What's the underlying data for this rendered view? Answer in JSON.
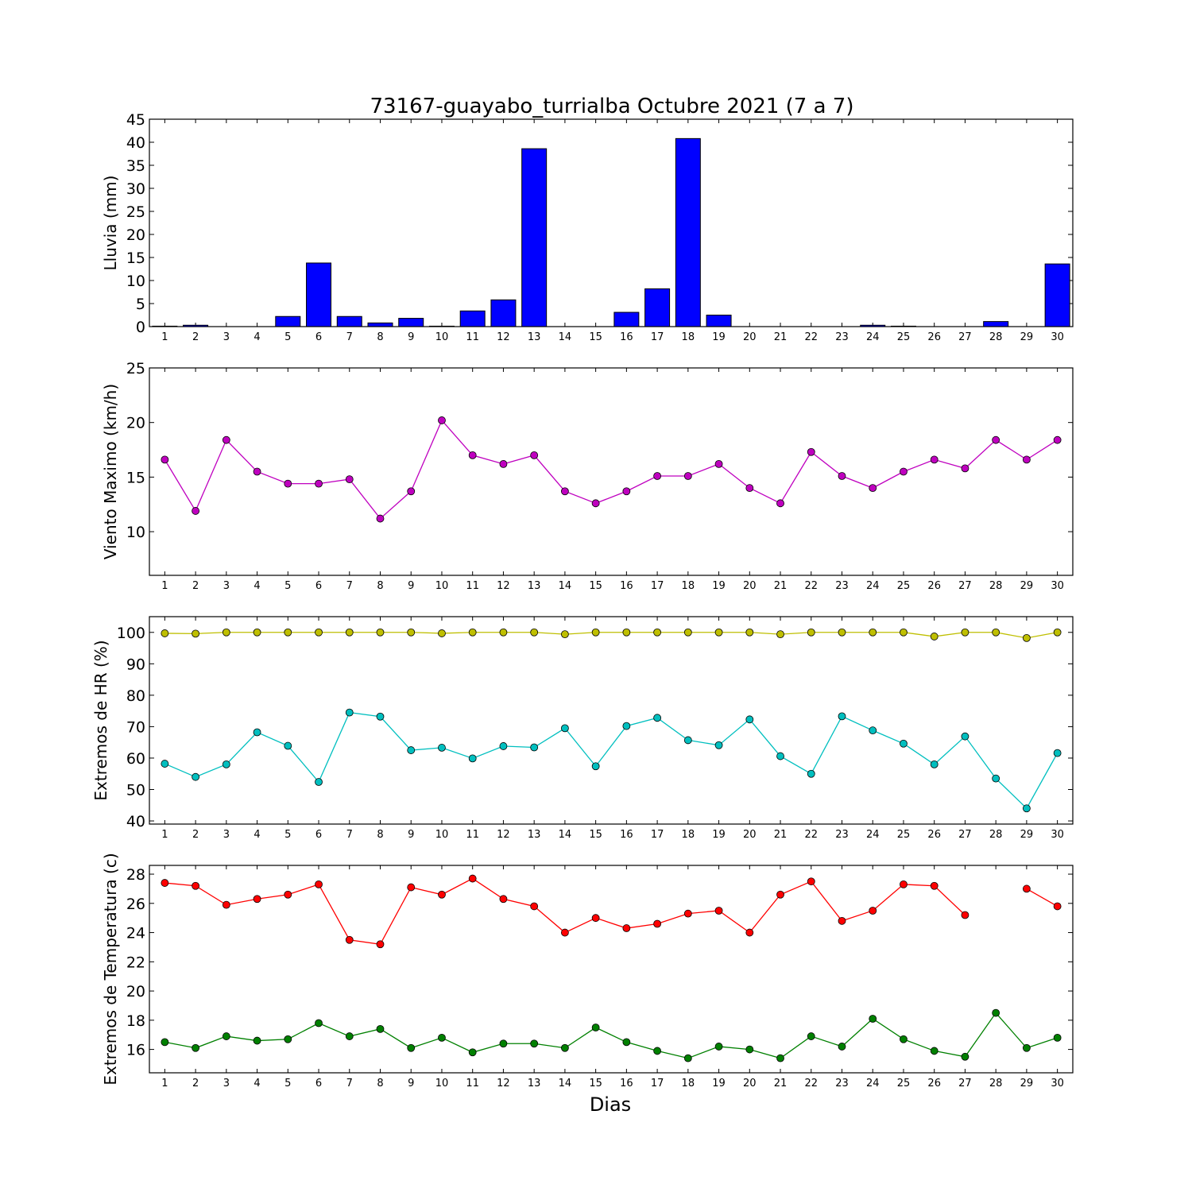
{
  "figure": {
    "title": "73167-guayabo_turrialba Octubre 2021  (7 a 7)",
    "xlabel": "Dias"
  },
  "chart_data": [
    {
      "type": "bar",
      "ylabel": "Lluvia (mm)",
      "xlim": [
        0.5,
        30.5
      ],
      "ylim": [
        0,
        45
      ],
      "yticks": [
        0,
        5,
        10,
        15,
        20,
        25,
        30,
        35,
        40,
        45
      ],
      "categories": [
        1,
        2,
        3,
        4,
        5,
        6,
        7,
        8,
        9,
        10,
        11,
        12,
        13,
        14,
        15,
        16,
        17,
        18,
        19,
        20,
        21,
        22,
        23,
        24,
        25,
        26,
        27,
        28,
        29,
        30
      ],
      "series": [
        {
          "color": "#0000ff",
          "values": [
            0.1,
            0.3,
            0.0,
            0.0,
            2.2,
            13.8,
            2.2,
            0.8,
            1.8,
            0.1,
            3.4,
            5.8,
            38.6,
            0.0,
            0.0,
            3.1,
            8.2,
            40.8,
            2.5,
            0.0,
            0.0,
            0.0,
            0.0,
            0.3,
            0.1,
            0.0,
            0.0,
            1.1,
            0.0,
            13.6
          ]
        }
      ]
    },
    {
      "type": "line",
      "ylabel": "Viento Maximo (km/h)",
      "xlim": [
        0.5,
        30.5
      ],
      "ylim": [
        6,
        25
      ],
      "yticks": [
        10,
        15,
        20,
        25
      ],
      "x": [
        1,
        2,
        3,
        4,
        5,
        6,
        7,
        8,
        9,
        10,
        11,
        12,
        13,
        14,
        15,
        16,
        17,
        18,
        19,
        20,
        21,
        22,
        23,
        24,
        25,
        26,
        27,
        28,
        29,
        30
      ],
      "series": [
        {
          "color": "#bf00bf",
          "values": [
            16.6,
            11.9,
            18.4,
            15.5,
            14.4,
            14.4,
            14.8,
            11.2,
            13.7,
            20.2,
            17.0,
            16.2,
            17.0,
            13.7,
            12.6,
            13.7,
            15.1,
            15.1,
            16.2,
            14.0,
            12.6,
            17.3,
            15.1,
            14.0,
            15.5,
            16.6,
            15.8,
            18.4,
            16.6,
            18.4
          ]
        }
      ]
    },
    {
      "type": "line",
      "ylabel": "Extremos de HR (%)",
      "xlim": [
        0.5,
        30.5
      ],
      "ylim": [
        39,
        105
      ],
      "yticks": [
        40,
        50,
        60,
        70,
        80,
        90,
        100
      ],
      "x": [
        1,
        2,
        3,
        4,
        5,
        6,
        7,
        8,
        9,
        10,
        11,
        12,
        13,
        14,
        15,
        16,
        17,
        18,
        19,
        20,
        21,
        22,
        23,
        24,
        25,
        26,
        27,
        28,
        29,
        30
      ],
      "series": [
        {
          "color": "#bfbf00",
          "values": [
            99.7,
            99.6,
            100,
            100,
            100,
            100,
            100,
            100,
            100,
            99.7,
            100,
            100,
            100,
            99.4,
            100,
            100,
            100,
            100,
            100,
            100,
            99.4,
            100,
            100,
            100,
            100,
            98.7,
            100,
            100,
            98.2,
            100
          ]
        },
        {
          "color": "#00bfbf",
          "values": [
            58.2,
            54.0,
            58.0,
            68.2,
            63.9,
            52.4,
            74.5,
            73.2,
            62.5,
            63.3,
            59.9,
            63.8,
            63.4,
            69.5,
            57.4,
            70.2,
            72.8,
            65.7,
            64.1,
            72.3,
            60.6,
            55.0,
            73.3,
            68.8,
            64.6,
            58.0,
            66.9,
            53.5,
            44.0,
            61.6
          ]
        }
      ]
    },
    {
      "type": "line",
      "ylabel": "Extremos de Temperatura (c)",
      "xlim": [
        0.5,
        30.5
      ],
      "ylim": [
        14.4,
        28.6
      ],
      "yticks": [
        16,
        18,
        20,
        22,
        24,
        26,
        28
      ],
      "x": [
        1,
        2,
        3,
        4,
        5,
        6,
        7,
        8,
        9,
        10,
        11,
        12,
        13,
        14,
        15,
        16,
        17,
        18,
        19,
        20,
        21,
        22,
        23,
        24,
        25,
        26,
        27,
        28,
        29,
        30
      ],
      "series": [
        {
          "color": "#ff0000",
          "values": [
            27.4,
            27.2,
            25.9,
            26.3,
            26.6,
            27.3,
            23.5,
            23.2,
            27.1,
            26.6,
            27.7,
            26.3,
            25.8,
            24.0,
            25.0,
            24.3,
            24.6,
            25.3,
            25.5,
            24.0,
            26.6,
            27.5,
            24.8,
            25.5,
            27.3,
            27.2,
            25.2,
            null,
            27.0,
            25.8
          ]
        },
        {
          "color": "#008000",
          "values": [
            16.5,
            16.1,
            16.9,
            16.6,
            16.7,
            17.8,
            16.9,
            17.4,
            16.1,
            16.8,
            15.8,
            16.4,
            16.4,
            16.1,
            17.5,
            16.5,
            15.9,
            15.4,
            16.2,
            16.0,
            15.4,
            16.9,
            16.2,
            18.1,
            16.7,
            15.9,
            15.5,
            18.5,
            16.1,
            16.8
          ]
        }
      ]
    }
  ]
}
